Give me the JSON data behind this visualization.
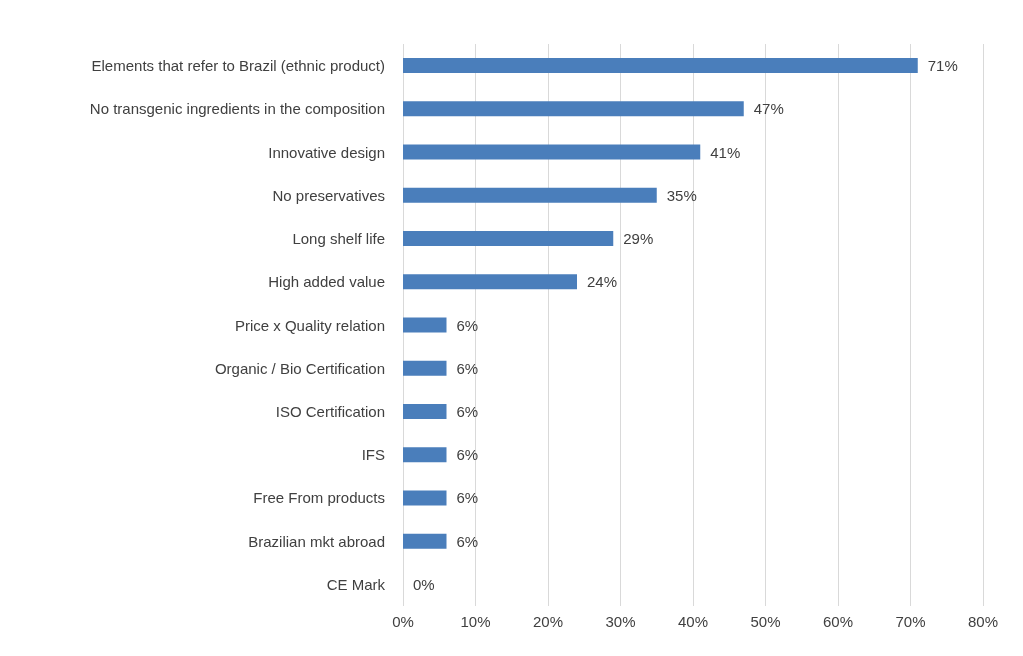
{
  "chart_data": {
    "type": "bar",
    "orientation": "horizontal",
    "categories": [
      "Elements that refer to Brazil (ethnic product)",
      "No transgenic ingredients in the composition",
      "Innovative design",
      "No preservatives",
      "Long shelf life",
      "High added value",
      "Price x Quality relation",
      "Organic / Bio Certification",
      "ISO Certification",
      "IFS",
      "Free From products",
      "Brazilian mkt abroad",
      "CE Mark"
    ],
    "values": [
      71,
      47,
      41,
      35,
      29,
      24,
      6,
      6,
      6,
      6,
      6,
      6,
      0
    ],
    "value_labels": [
      "71%",
      "47%",
      "41%",
      "35%",
      "29%",
      "24%",
      "6%",
      "6%",
      "6%",
      "6%",
      "6%",
      "6%",
      "0%"
    ],
    "color": "#4a7ebb",
    "xlim": [
      0,
      80
    ],
    "xticks": [
      {
        "value": 0,
        "label": "0%"
      },
      {
        "value": 10,
        "label": "10%"
      },
      {
        "value": 20,
        "label": "20%"
      },
      {
        "value": 30,
        "label": "30%"
      },
      {
        "value": 40,
        "label": "40%"
      },
      {
        "value": 50,
        "label": "50%"
      },
      {
        "value": 60,
        "label": "60%"
      },
      {
        "value": 70,
        "label": "70%"
      },
      {
        "value": 80,
        "label": "80%"
      }
    ],
    "grid": "x"
  }
}
